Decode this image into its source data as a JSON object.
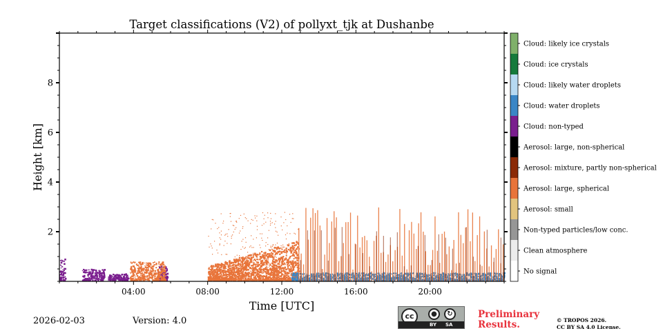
{
  "chart_data": {
    "type": "heatmap",
    "title": "Target classifications (V2) of pollyxt_tjk at Dushanbe",
    "xlabel": "Time [UTC]",
    "ylabel": "Height [km]",
    "xlim": [
      0,
      24
    ],
    "ylim": [
      0,
      10
    ],
    "x_ticks": [
      4,
      8,
      12,
      16,
      20
    ],
    "x_tick_labels": [
      "04:00",
      "08:00",
      "12:00",
      "16:00",
      "20:00"
    ],
    "y_ticks": [
      2,
      4,
      6,
      8
    ],
    "y_tick_labels": [
      "2",
      "4",
      "6",
      "8"
    ],
    "colorbar": [
      {
        "value": 11,
        "label": "Cloud: likely ice crystals",
        "color": "#7fb06a"
      },
      {
        "value": 10,
        "label": "Cloud: ice crystals",
        "color": "#157a3c"
      },
      {
        "value": 9,
        "label": "Cloud: likely water droplets",
        "color": "#b6d9f2"
      },
      {
        "value": 8,
        "label": "Cloud: water droplets",
        "color": "#3a86c6"
      },
      {
        "value": 7,
        "label": "Cloud: non-typed",
        "color": "#7a1e8e"
      },
      {
        "value": 6,
        "label": "Aerosol: large, non-spherical",
        "color": "#000000"
      },
      {
        "value": 5,
        "label": "Aerosol: mixture, partly non-spherical",
        "color": "#8b2a06"
      },
      {
        "value": 4,
        "label": "Aerosol: large, spherical",
        "color": "#e8743a"
      },
      {
        "value": 3,
        "label": "Aerosol: small",
        "color": "#e2c47e"
      },
      {
        "value": 2,
        "label": "Non-typed particles/low conc.",
        "color": "#969696"
      },
      {
        "value": 1,
        "label": "Clean atmosphere",
        "color": "#ececec"
      },
      {
        "value": 0,
        "label": "No signal",
        "color": "#ffffff"
      }
    ],
    "regions": [
      {
        "class": "Cloud: non-typed",
        "t_start": 0.0,
        "t_end": 0.3,
        "h_top": 0.85
      },
      {
        "class": "Cloud: non-typed",
        "t_start": 1.2,
        "t_end": 2.4,
        "h_top": 0.45
      },
      {
        "class": "Cloud: non-typed",
        "t_start": 2.6,
        "t_end": 3.7,
        "h_top": 0.25
      },
      {
        "class": "Cloud: non-typed",
        "t_start": 5.3,
        "t_end": 5.8,
        "h_top": 0.6
      },
      {
        "class": "Aerosol: large, spherical",
        "t_start": 3.8,
        "t_end": 5.7,
        "h_top": 0.75
      },
      {
        "class": "Aerosol: large, spherical",
        "t_start": 8.0,
        "t_end": 12.9,
        "h_top": 1.6
      },
      {
        "class": "Cloud: water droplets",
        "t_start": 12.5,
        "t_end": 24.0,
        "h_top": 0.3
      },
      {
        "class": "Aerosol: large, spherical",
        "t_start": 12.9,
        "t_end": 24.0,
        "h_top": 2.6
      }
    ]
  },
  "footer": {
    "date": "2026-02-03",
    "version": "Version: 4.0",
    "prelim_line1": "Preliminary",
    "prelim_line2": "Results.",
    "copyright_line1": "© TROPOS 2026.",
    "copyright_line2": "CC BY SA 4.0 License.",
    "badge_cc": "cc",
    "badge_by": "BY",
    "badge_sa": "SA"
  }
}
